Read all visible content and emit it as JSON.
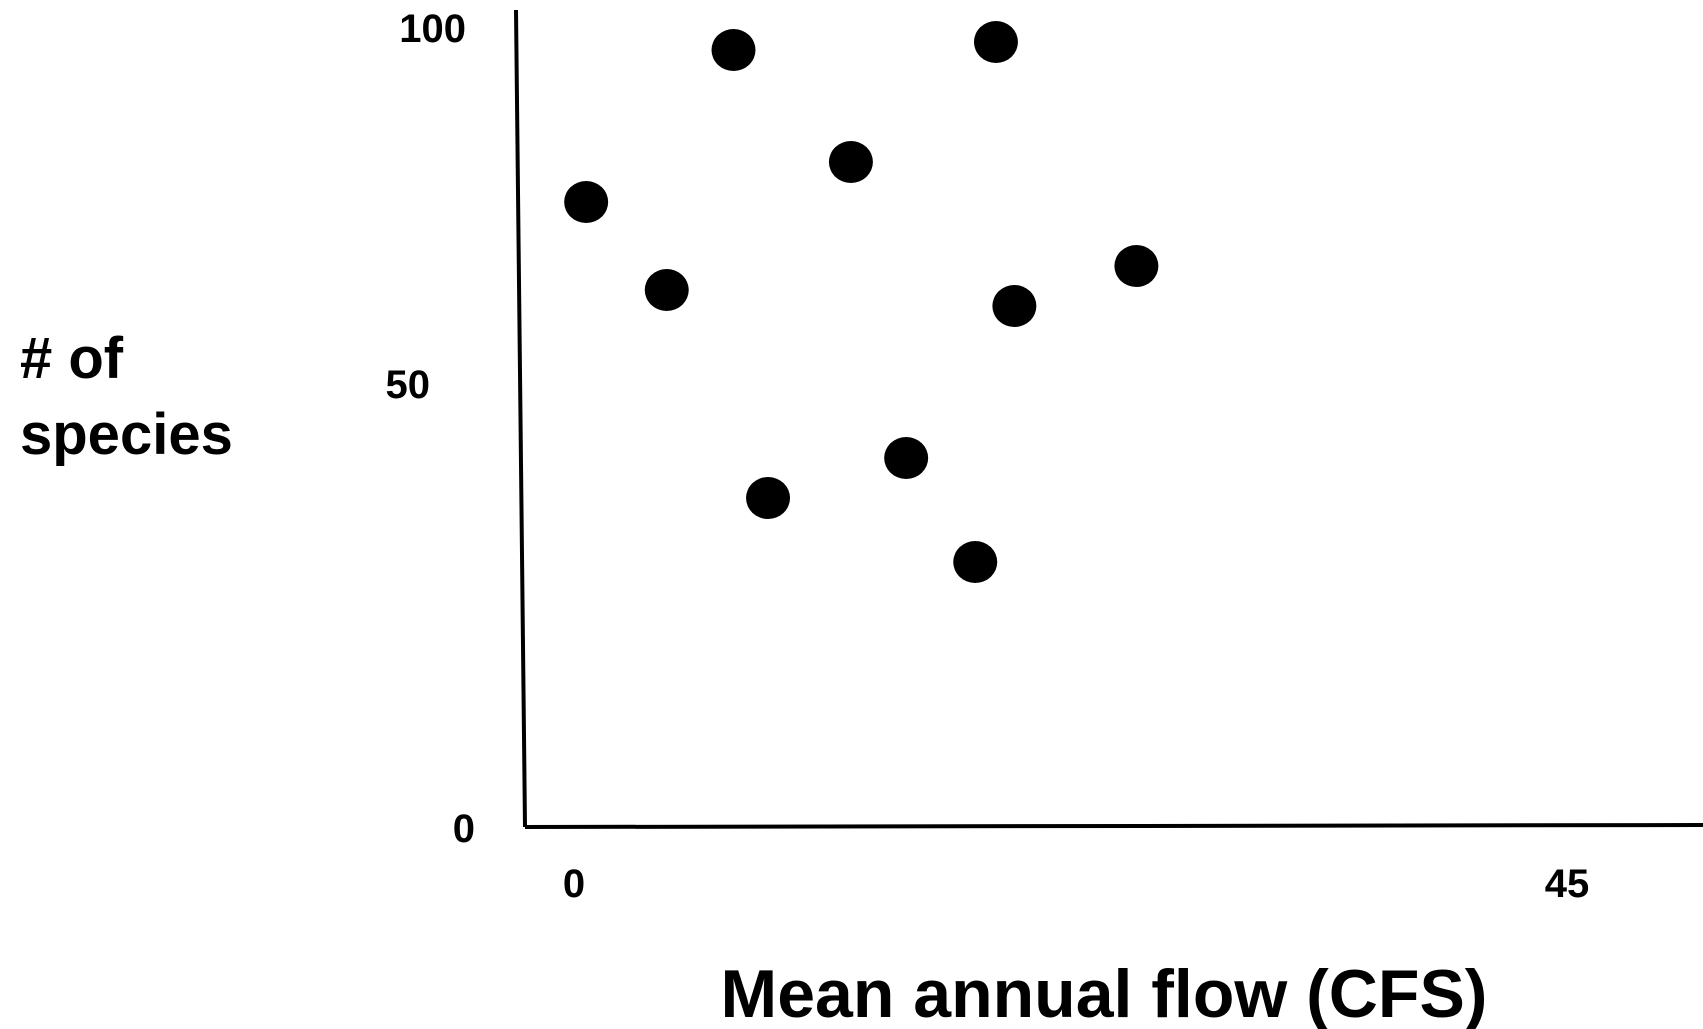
{
  "chart_data": {
    "type": "scatter",
    "xlabel": "Mean annual flow (CFS)",
    "ylabel_lines": [
      "# of",
      "species"
    ],
    "x_ticks": [
      {
        "value": 0,
        "label": "0"
      },
      {
        "value": 45,
        "label": "45"
      }
    ],
    "y_ticks": [
      {
        "value": 0,
        "label": "0"
      },
      {
        "value": 50,
        "label": "50"
      },
      {
        "value": 100,
        "label": "100"
      }
    ],
    "xlim": [
      0,
      45
    ],
    "ylim": [
      0,
      100
    ],
    "grid": false,
    "legend": "none",
    "marker_color": "#000000",
    "points": [
      {
        "x": 2.7,
        "y": 78
      },
      {
        "x": 6.2,
        "y": 67
      },
      {
        "x": 9.1,
        "y": 97
      },
      {
        "x": 10.6,
        "y": 41
      },
      {
        "x": 14.2,
        "y": 83
      },
      {
        "x": 16.6,
        "y": 46
      },
      {
        "x": 19.6,
        "y": 33
      },
      {
        "x": 20.5,
        "y": 98
      },
      {
        "x": 21.3,
        "y": 65
      },
      {
        "x": 26.6,
        "y": 70
      }
    ]
  }
}
